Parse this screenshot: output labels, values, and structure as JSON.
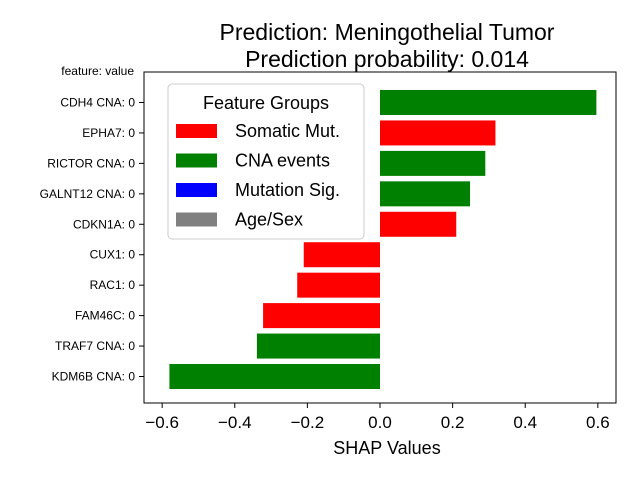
{
  "chart_data": {
    "type": "bar",
    "orientation": "horizontal",
    "title_line1": "Prediction: Meningothelial Tumor",
    "title_line2": "Prediction probability: 0.014",
    "y_header": "feature: value",
    "xlabel": "SHAP Values",
    "xlim": [
      -0.65,
      0.65
    ],
    "xticks": [
      -0.6,
      -0.4,
      -0.2,
      0.0,
      0.2,
      0.4,
      0.6
    ],
    "xtick_labels": [
      "−0.6",
      "−0.4",
      "−0.2",
      "0.0",
      "0.2",
      "0.4",
      "0.6"
    ],
    "categories": [
      "CDH4 CNA: 0",
      "EPHA7: 0",
      "RICTOR CNA: 0",
      "GALNT12 CNA: 0",
      "CDKN1A: 0",
      "CUX1: 0",
      "RAC1: 0",
      "FAM46C: 0",
      "TRAF7 CNA: 0",
      "KDM6B CNA: 0"
    ],
    "values": [
      0.596,
      0.318,
      0.29,
      0.248,
      0.21,
      -0.21,
      -0.228,
      -0.322,
      -0.339,
      -0.58
    ],
    "groups": [
      "CNA events",
      "Somatic Mut.",
      "CNA events",
      "CNA events",
      "Somatic Mut.",
      "Somatic Mut.",
      "Somatic Mut.",
      "Somatic Mut.",
      "CNA events",
      "CNA events"
    ],
    "legend": {
      "title": "Feature Groups",
      "placement": "upper-left",
      "entries": [
        {
          "label": "Somatic Mut.",
          "color": "#ff0000"
        },
        {
          "label": "CNA events",
          "color": "#008000"
        },
        {
          "label": "Mutation Sig.",
          "color": "#0000ff"
        },
        {
          "label": "Age/Sex",
          "color": "#808080"
        }
      ]
    },
    "grid": false
  }
}
